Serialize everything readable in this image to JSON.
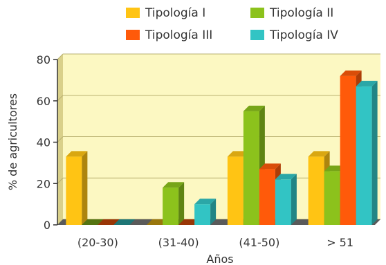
{
  "chart_data": {
    "type": "bar",
    "categories": [
      "(20-30)",
      "(31-40)",
      "(41-50)",
      "> 51"
    ],
    "series": [
      {
        "name": "Tipología I",
        "color": "#FFC414",
        "values": [
          33,
          0,
          33,
          33
        ]
      },
      {
        "name": "Tipología II",
        "color": "#8CC21C",
        "values": [
          0,
          18,
          55,
          26
        ]
      },
      {
        "name": "Tipología III",
        "color": "#FF5A0A",
        "values": [
          0,
          0,
          27,
          72
        ]
      },
      {
        "name": "Tipología IV",
        "color": "#32C4C4",
        "values": [
          0,
          10,
          22,
          67
        ]
      }
    ],
    "xlabel": "Años",
    "ylabel": "% de agricultores",
    "ylim": [
      0,
      80
    ],
    "yticks": [
      0,
      20,
      40,
      60,
      80
    ],
    "grid": "horizontal",
    "legend_position": "top",
    "plot_background": "#FCF8C2"
  }
}
